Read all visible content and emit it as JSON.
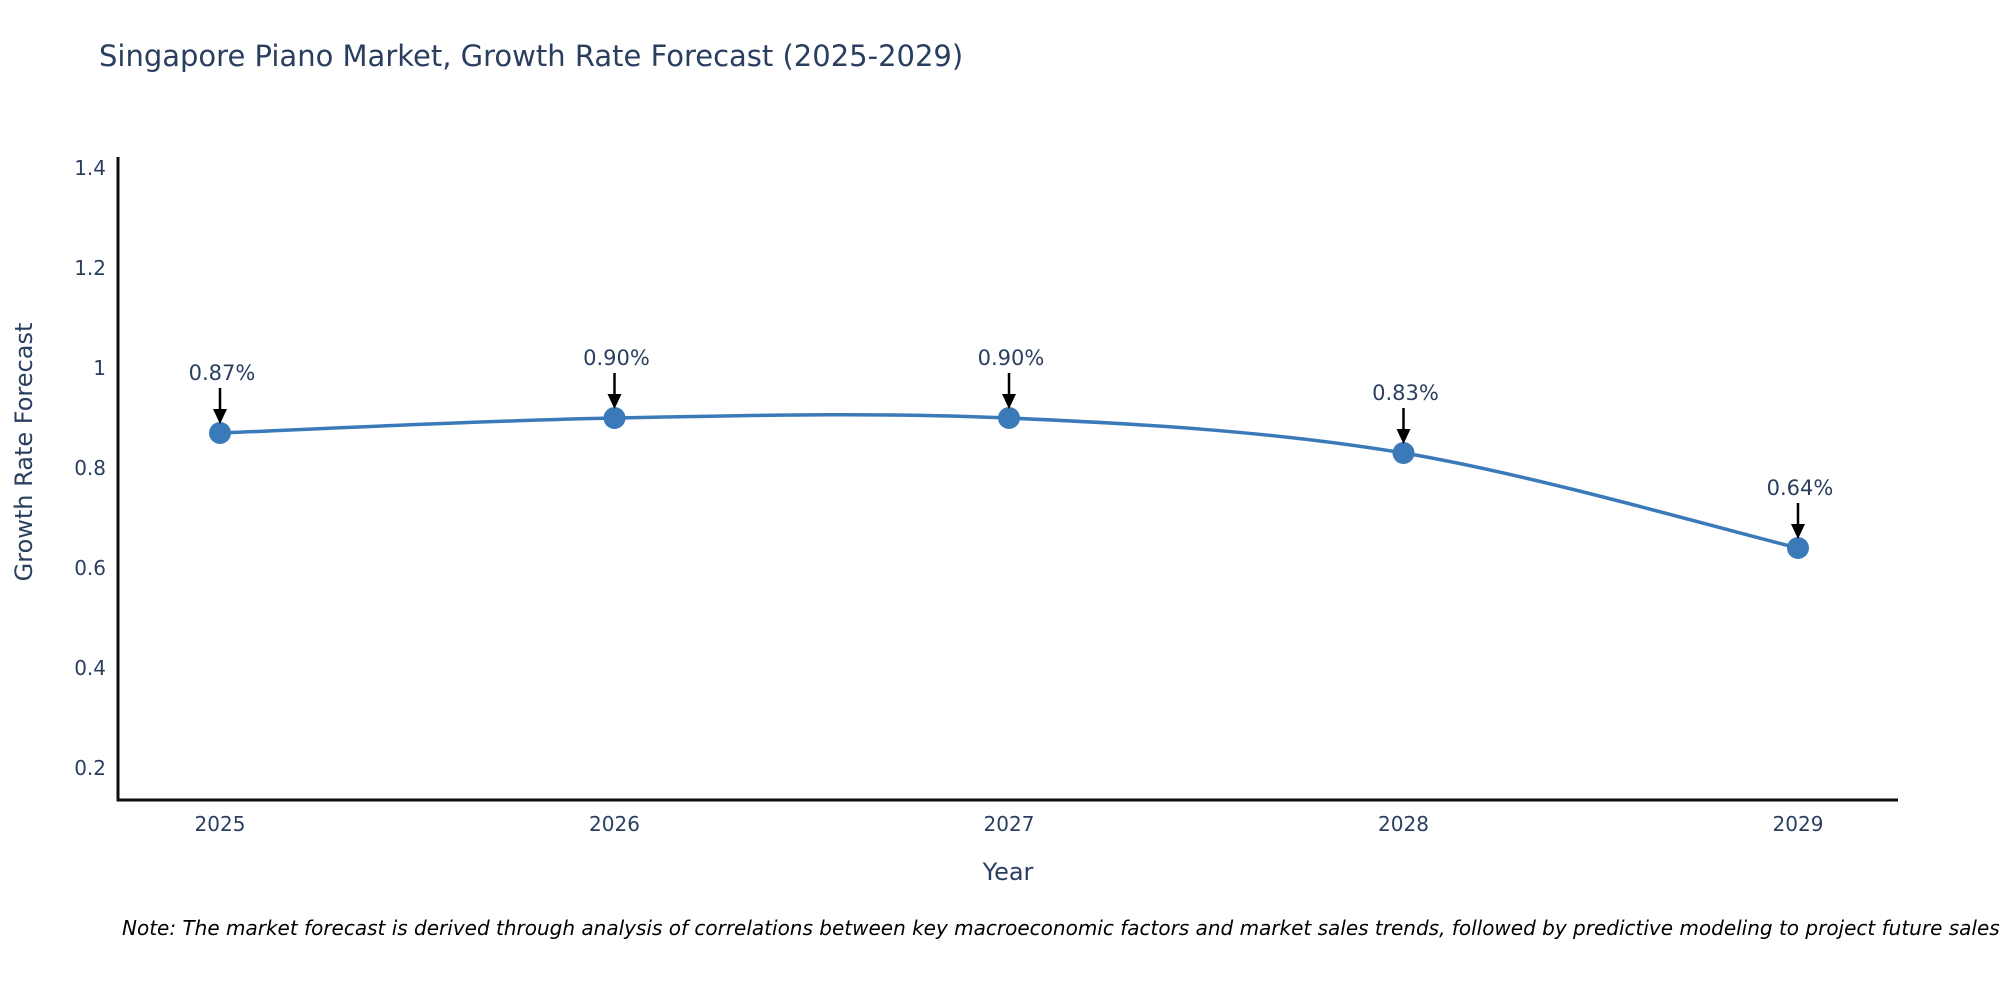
{
  "title": "Singapore Piano Market, Growth Rate Forecast (2025-2029)",
  "note": "Note: The market forecast is derived through analysis of correlations between key macroeconomic factors and market sales trends, followed by predictive modeling to project future sales.",
  "chart_data": {
    "type": "line",
    "title": "Singapore Piano Market, Growth Rate Forecast (2025-2029)",
    "xlabel": "Year",
    "ylabel": "Growth Rate Forecast",
    "categories": [
      "2025",
      "2026",
      "2027",
      "2028",
      "2029"
    ],
    "series": [
      {
        "name": "Growth Rate Forecast",
        "values": [
          0.87,
          0.9,
          0.9,
          0.83,
          0.64
        ],
        "point_labels": [
          "0.87%",
          "0.90%",
          "0.90%",
          "0.83%",
          "0.64%"
        ]
      }
    ],
    "yticks": [
      0.2,
      0.4,
      0.6,
      0.8,
      1,
      1.2,
      1.4
    ],
    "ylim": [
      0.14,
      1.46
    ],
    "grid": false,
    "legend_position": "none",
    "line_shape": "spline",
    "marker": "circle",
    "annotation_arrows": true,
    "colors": {
      "line": "#3a7ab9",
      "marker": "#3a7ab9",
      "text": "#2a3f5f",
      "axis_line": "#0d0d0d",
      "arrow": "#000000",
      "background": "#ffffff"
    }
  }
}
